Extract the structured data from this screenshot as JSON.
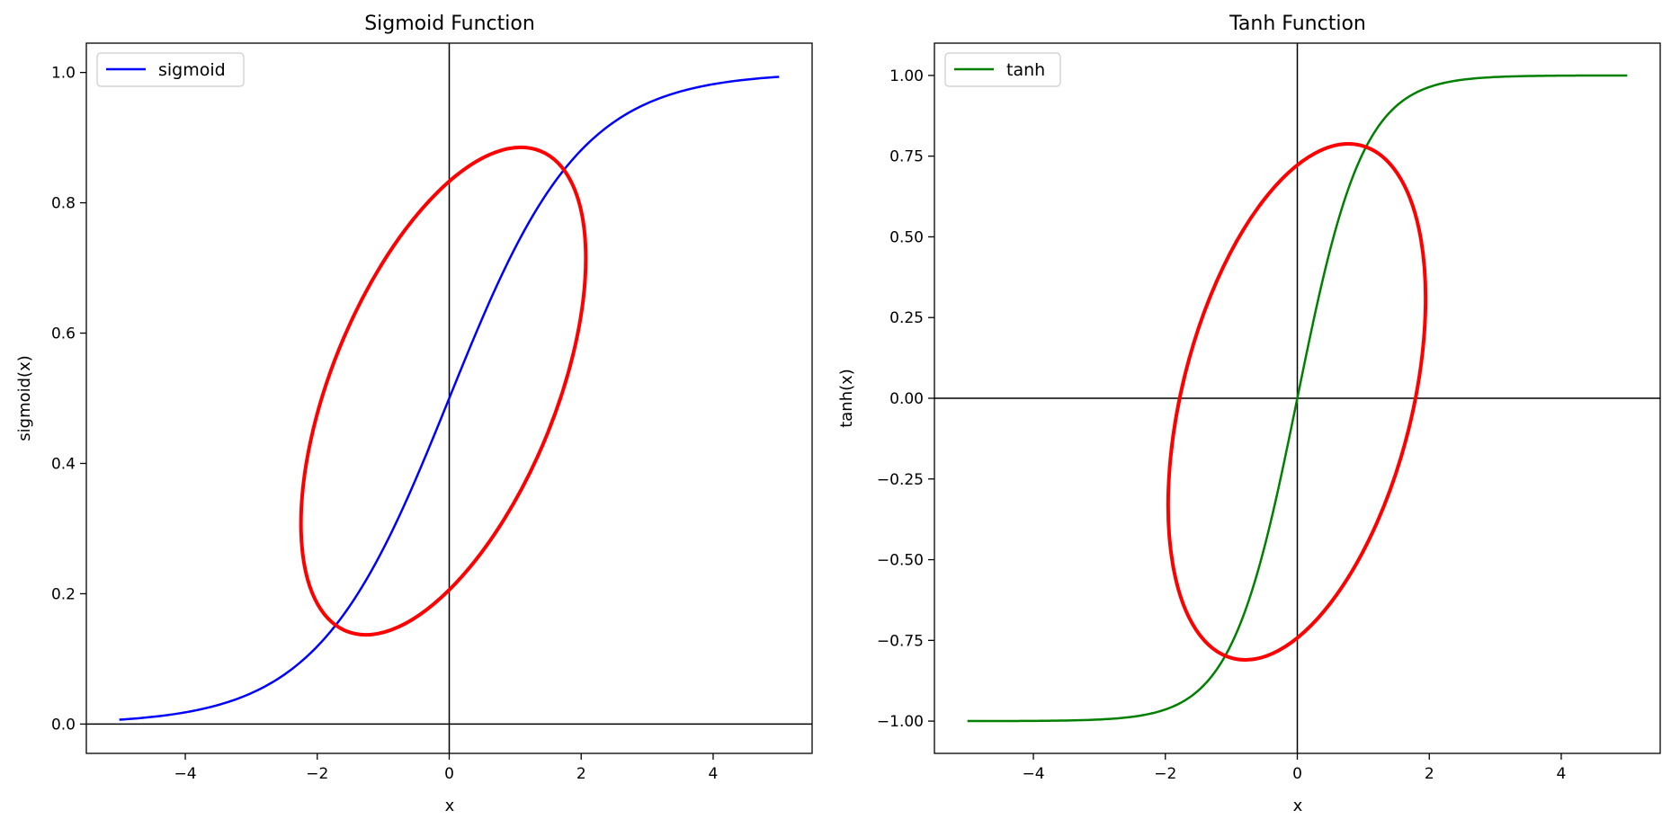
{
  "chart_data": [
    {
      "type": "line",
      "title": "Sigmoid Function",
      "xlabel": "x",
      "ylabel": "sigmoid(x)",
      "xlim": [
        -5.5,
        5.5
      ],
      "ylim": [
        -0.045,
        1.045
      ],
      "x_ticks": [
        -4,
        -2,
        0,
        2,
        4
      ],
      "x_tick_labels": [
        "−4",
        "−2",
        "0",
        "2",
        "4"
      ],
      "y_ticks": [
        0.0,
        0.2,
        0.4,
        0.6,
        0.8,
        1.0
      ],
      "y_tick_labels": [
        "0.0",
        "0.2",
        "0.4",
        "0.6",
        "0.8",
        "1.0"
      ],
      "legend_position": "upper-left",
      "reference_lines": {
        "x": 0,
        "y": 0,
        "color": "#000000"
      },
      "series": [
        {
          "name": "sigmoid",
          "color": "#0000ff",
          "function": "sigmoid",
          "x": [
            -5,
            -4.5,
            -4,
            -3.5,
            -3,
            -2.5,
            -2,
            -1.5,
            -1,
            -0.5,
            0,
            0.5,
            1,
            1.5,
            2,
            2.5,
            3,
            3.5,
            4,
            4.5,
            5
          ],
          "y": [
            0.0067,
            0.011,
            0.018,
            0.0293,
            0.0474,
            0.0759,
            0.1192,
            0.1824,
            0.2689,
            0.3775,
            0.5,
            0.6225,
            0.7311,
            0.8176,
            0.8808,
            0.9241,
            0.9526,
            0.9707,
            0.982,
            0.989,
            0.9933
          ]
        }
      ],
      "annotation_ellipse": {
        "color": "#ff0000",
        "description": "red ellipse around the steep middle region"
      }
    },
    {
      "type": "line",
      "title": "Tanh Function",
      "xlabel": "x",
      "ylabel": "tanh(x)",
      "xlim": [
        -5.5,
        5.5
      ],
      "ylim": [
        -1.1,
        1.1
      ],
      "x_ticks": [
        -4,
        -2,
        0,
        2,
        4
      ],
      "x_tick_labels": [
        "−4",
        "−2",
        "0",
        "2",
        "4"
      ],
      "y_ticks": [
        -1.0,
        -0.75,
        -0.5,
        -0.25,
        0.0,
        0.25,
        0.5,
        0.75,
        1.0
      ],
      "y_tick_labels": [
        "−1.00",
        "−0.75",
        "−0.50",
        "−0.25",
        "0.00",
        "0.25",
        "0.50",
        "0.75",
        "1.00"
      ],
      "legend_position": "upper-left",
      "reference_lines": {
        "x": 0,
        "y": 0,
        "color": "#000000"
      },
      "series": [
        {
          "name": "tanh",
          "color": "#008000",
          "function": "tanh",
          "x": [
            -5,
            -4.5,
            -4,
            -3.5,
            -3,
            -2.5,
            -2,
            -1.5,
            -1,
            -0.5,
            0,
            0.5,
            1,
            1.5,
            2,
            2.5,
            3,
            3.5,
            4,
            4.5,
            5
          ],
          "y": [
            -0.9999,
            -0.9998,
            -0.9993,
            -0.9982,
            -0.9951,
            -0.9866,
            -0.964,
            -0.9051,
            -0.7616,
            -0.4621,
            0,
            0.4621,
            0.7616,
            0.9051,
            0.964,
            0.9866,
            0.9951,
            0.9982,
            0.9993,
            0.9998,
            0.9999
          ]
        }
      ],
      "annotation_ellipse": {
        "color": "#ff0000",
        "description": "red ellipse around the steep middle region"
      }
    }
  ]
}
